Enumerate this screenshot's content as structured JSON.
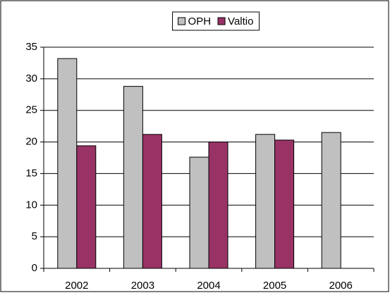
{
  "chart_data": {
    "type": "bar",
    "categories": [
      "2002",
      "2003",
      "2004",
      "2005",
      "2006"
    ],
    "series": [
      {
        "name": "OPH",
        "color": "#c0c0c0",
        "values": [
          33.2,
          28.8,
          17.6,
          21.2,
          21.5
        ]
      },
      {
        "name": "Valtio",
        "color": "#993366",
        "values": [
          19.4,
          21.2,
          20.0,
          20.3,
          null
        ]
      }
    ],
    "ylim": [
      0,
      35
    ],
    "yticks": [
      0,
      5,
      10,
      15,
      20,
      25,
      30,
      35
    ],
    "grid": true,
    "legend": "top"
  }
}
